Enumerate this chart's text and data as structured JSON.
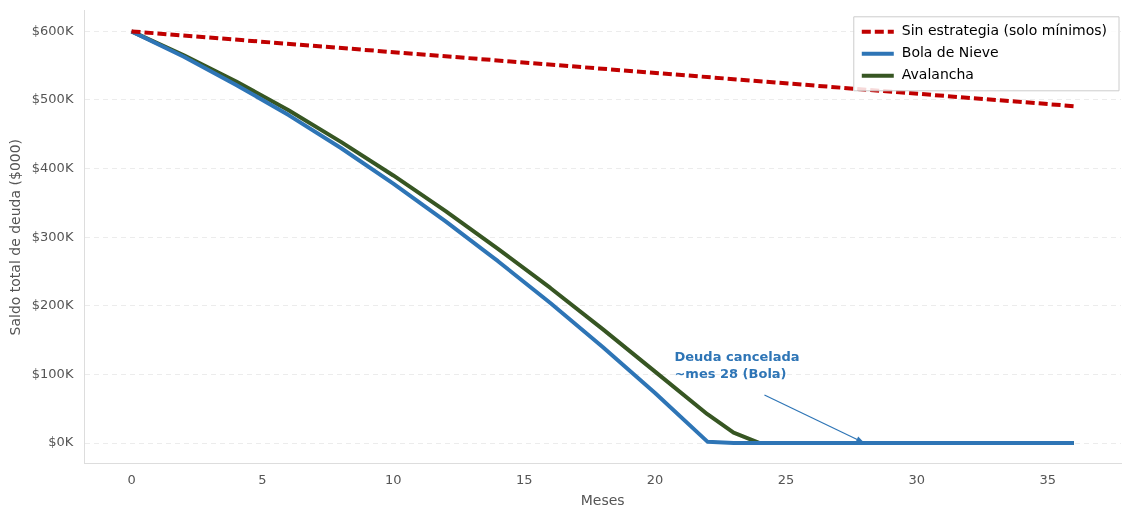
{
  "chart_data": {
    "type": "line",
    "xlabel": "Meses",
    "ylabel": "Saldo total de deuda ($000)",
    "xlim": [
      -1.8,
      37.8
    ],
    "xticks": [
      0,
      5,
      10,
      15,
      20,
      25,
      30,
      35
    ],
    "ylim": [
      -30,
      630
    ],
    "yticks": [
      {
        "value": 0,
        "label": "$0K"
      },
      {
        "value": 100,
        "label": "$100K"
      },
      {
        "value": 200,
        "label": "$200K"
      },
      {
        "value": 300,
        "label": "$300K"
      },
      {
        "value": 400,
        "label": "$400K"
      },
      {
        "value": 500,
        "label": "$500K"
      },
      {
        "value": 600,
        "label": "$600K"
      }
    ],
    "grid": "y",
    "legend": "top right",
    "marker": "none",
    "series": [
      {
        "name": "Sin estrategia (solo mínimos)",
        "color": "#c00000",
        "line_style": "dashed",
        "x": [
          0,
          36
        ],
        "values": [
          600,
          491
        ]
      },
      {
        "name": "Bola de Nieve",
        "color": "#2e75b6",
        "line_style": "solid",
        "x": [
          0,
          2,
          4,
          6,
          8,
          10,
          12,
          14,
          16,
          18,
          20,
          22,
          23,
          36
        ],
        "values": [
          600,
          563,
          522,
          478,
          430,
          378,
          323,
          265,
          204,
          140,
          73,
          2,
          0,
          0
        ]
      },
      {
        "name": "Avalancha",
        "color": "#375623",
        "line_style": "solid",
        "x": [
          0,
          2,
          4,
          6,
          8,
          10,
          12,
          14,
          16,
          18,
          20,
          22,
          23,
          24,
          36
        ],
        "values": [
          600,
          565,
          527,
          485,
          439,
          390,
          338,
          283,
          226,
          166,
          104,
          42,
          15,
          0,
          0
        ]
      }
    ],
    "annotations": [
      {
        "text": "Deuda cancelada\n~mes 28 (Bola)",
        "x": 28,
        "y": 0
      }
    ]
  }
}
